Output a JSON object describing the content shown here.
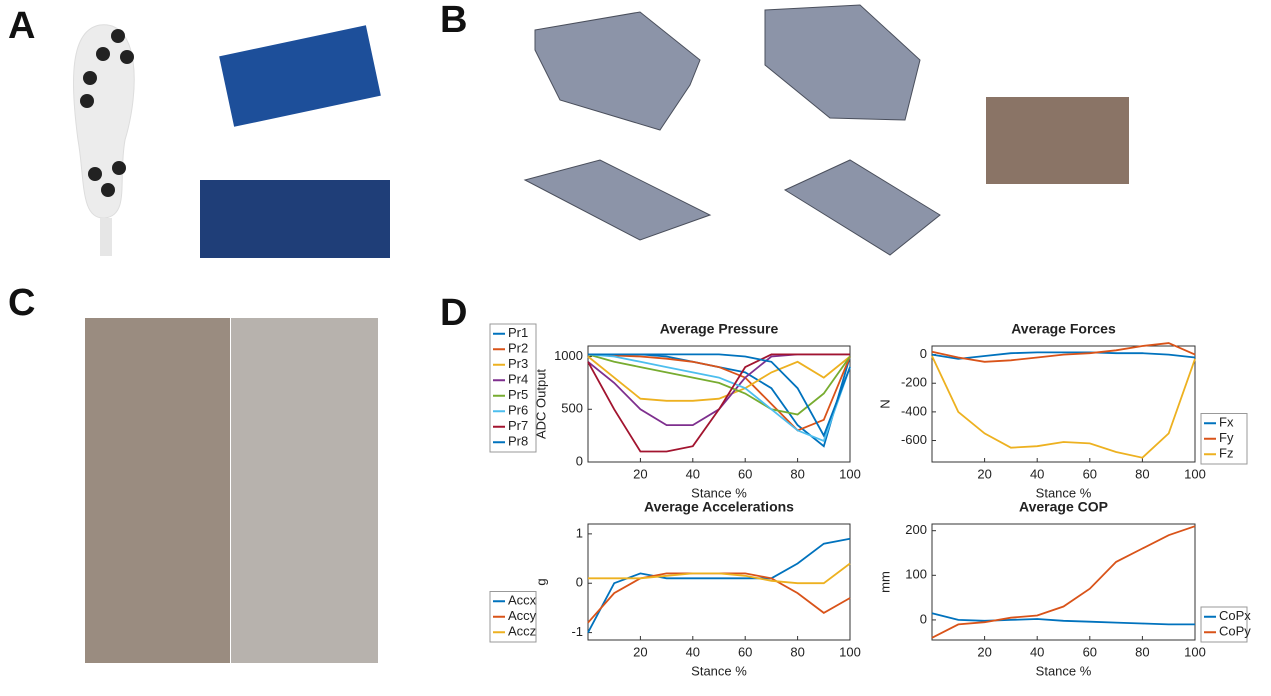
{
  "panels": [
    "A",
    "B",
    "C",
    "D"
  ],
  "chart_data": [
    {
      "type": "line",
      "title": "Average Pressure",
      "xlabel": "Stance %",
      "ylabel": "ADC Output",
      "legend": "outside-left",
      "x": [
        0,
        10,
        20,
        30,
        40,
        50,
        60,
        70,
        80,
        90,
        100
      ],
      "xlim": [
        0,
        100
      ],
      "xticks": [
        20,
        40,
        60,
        80,
        100
      ],
      "ylim": [
        0,
        1100
      ],
      "yticks": [
        0,
        500,
        1000
      ],
      "series": [
        {
          "name": "Pr1",
          "color": "#0072bd",
          "values": [
            1020,
            1020,
            1020,
            1000,
            950,
            900,
            850,
            700,
            350,
            150,
            1000
          ]
        },
        {
          "name": "Pr2",
          "color": "#d95319",
          "values": [
            1020,
            1010,
            1000,
            980,
            950,
            900,
            800,
            550,
            300,
            400,
            1000
          ]
        },
        {
          "name": "Pr3",
          "color": "#edb120",
          "values": [
            1000,
            800,
            600,
            580,
            580,
            600,
            700,
            850,
            950,
            800,
            1000
          ]
        },
        {
          "name": "Pr4",
          "color": "#7e2f8e",
          "values": [
            950,
            750,
            500,
            350,
            350,
            500,
            800,
            1000,
            1020,
            1020,
            1020
          ]
        },
        {
          "name": "Pr5",
          "color": "#77ac30",
          "values": [
            1020,
            950,
            900,
            850,
            800,
            750,
            650,
            500,
            450,
            650,
            1000
          ]
        },
        {
          "name": "Pr6",
          "color": "#4dbeee",
          "values": [
            1020,
            1000,
            950,
            900,
            850,
            800,
            700,
            500,
            300,
            200,
            900
          ]
        },
        {
          "name": "Pr7",
          "color": "#a2142f",
          "values": [
            950,
            500,
            100,
            100,
            150,
            500,
            900,
            1020,
            1020,
            1020,
            1020
          ]
        },
        {
          "name": "Pr8",
          "color": "#0072bd",
          "values": [
            1020,
            1020,
            1020,
            1020,
            1020,
            1020,
            1000,
            950,
            700,
            250,
            900
          ]
        }
      ]
    },
    {
      "type": "line",
      "title": "Average Forces",
      "xlabel": "Stance %",
      "ylabel": "N",
      "legend": "outside-right",
      "x": [
        0,
        10,
        20,
        30,
        40,
        50,
        60,
        70,
        80,
        90,
        100
      ],
      "xlim": [
        0,
        100
      ],
      "xticks": [
        20,
        40,
        60,
        80,
        100
      ],
      "ylim": [
        -750,
        60
      ],
      "yticks": [
        -600,
        -400,
        -200,
        0
      ],
      "series": [
        {
          "name": "Fx",
          "color": "#0072bd",
          "values": [
            0,
            -30,
            -10,
            10,
            15,
            15,
            15,
            10,
            10,
            0,
            -20
          ]
        },
        {
          "name": "Fy",
          "color": "#d95319",
          "values": [
            20,
            -20,
            -50,
            -40,
            -20,
            0,
            10,
            30,
            60,
            80,
            0
          ]
        },
        {
          "name": "Fz",
          "color": "#edb120",
          "values": [
            -10,
            -400,
            -550,
            -650,
            -640,
            -610,
            -620,
            -680,
            -720,
            -550,
            -30
          ]
        }
      ]
    },
    {
      "type": "line",
      "title": "Average Accelerations",
      "xlabel": "Stance %",
      "ylabel": "g",
      "legend": "outside-left",
      "x": [
        0,
        10,
        20,
        30,
        40,
        50,
        60,
        70,
        80,
        90,
        100
      ],
      "xlim": [
        0,
        100
      ],
      "xticks": [
        20,
        40,
        60,
        80,
        100
      ],
      "ylim": [
        -1.15,
        1.2
      ],
      "yticks": [
        -1,
        0,
        1
      ],
      "series": [
        {
          "name": "Accx",
          "color": "#0072bd",
          "values": [
            -1,
            0,
            0.2,
            0.1,
            0.1,
            0.1,
            0.1,
            0.1,
            0.4,
            0.8,
            0.9
          ]
        },
        {
          "name": "Accy",
          "color": "#d95319",
          "values": [
            -0.8,
            -0.2,
            0.1,
            0.2,
            0.2,
            0.2,
            0.2,
            0.1,
            -0.2,
            -0.6,
            -0.3
          ]
        },
        {
          "name": "Accz",
          "color": "#edb120",
          "values": [
            0.1,
            0.1,
            0.1,
            0.15,
            0.2,
            0.2,
            0.15,
            0.05,
            0,
            0,
            0.4
          ]
        }
      ]
    },
    {
      "type": "line",
      "title": "Average COP",
      "xlabel": "Stance %",
      "ylabel": "mm",
      "legend": "outside-right",
      "x": [
        0,
        10,
        20,
        30,
        40,
        50,
        60,
        70,
        80,
        90,
        100
      ],
      "xlim": [
        0,
        100
      ],
      "xticks": [
        20,
        40,
        60,
        80,
        100
      ],
      "ylim": [
        -45,
        215
      ],
      "yticks": [
        0,
        100,
        200
      ],
      "series": [
        {
          "name": "CoPx",
          "color": "#0072bd",
          "values": [
            15,
            0,
            -2,
            0,
            2,
            -2,
            -4,
            -6,
            -8,
            -10,
            -10
          ]
        },
        {
          "name": "CoPy",
          "color": "#d95319",
          "values": [
            -40,
            -10,
            -5,
            5,
            10,
            30,
            70,
            130,
            160,
            190,
            210
          ]
        }
      ]
    }
  ]
}
